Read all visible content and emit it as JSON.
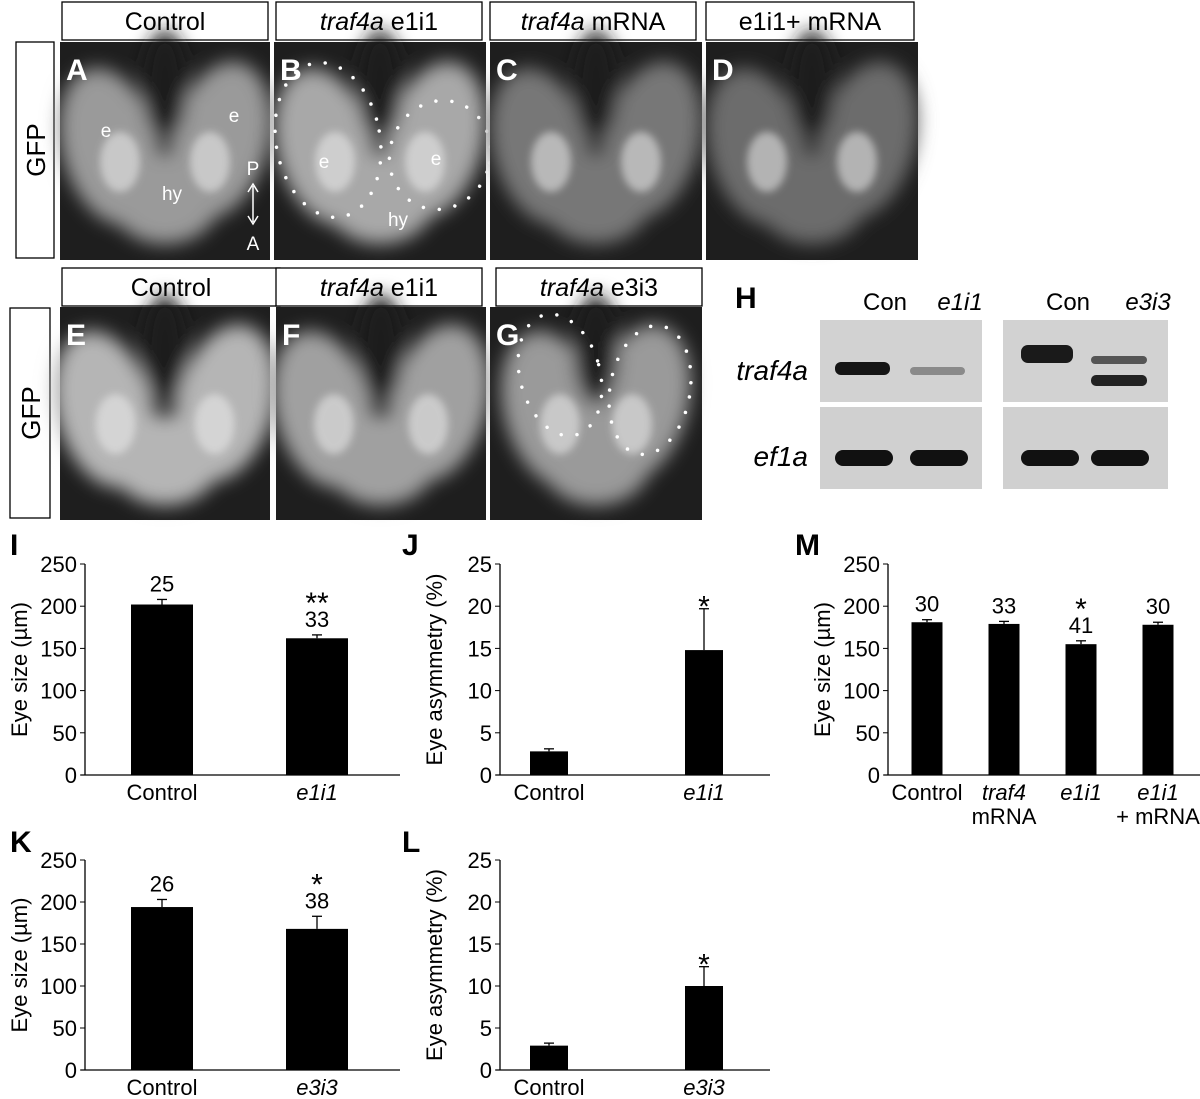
{
  "row1": {
    "headers": [
      {
        "parts": [
          {
            "text": "Control",
            "italic": false
          }
        ]
      },
      {
        "parts": [
          {
            "text": "traf4a",
            "italic": true
          },
          {
            "text": " e1i1",
            "italic": false
          }
        ]
      },
      {
        "parts": [
          {
            "text": "traf4a",
            "italic": true
          },
          {
            "text": " mRNA",
            "italic": false
          }
        ]
      },
      {
        "parts": [
          {
            "text": "e1i1+ mRNA",
            "italic": false
          }
        ]
      }
    ],
    "side_label": "GFP",
    "panels": [
      "A",
      "B",
      "C",
      "D"
    ],
    "annotations": {
      "eye": "e",
      "hypothalamus": "hy",
      "posterior": "P",
      "anterior": "A"
    }
  },
  "row2": {
    "headers": [
      {
        "parts": [
          {
            "text": "Control",
            "italic": false
          }
        ]
      },
      {
        "parts": [
          {
            "text": "traf4a",
            "italic": true
          },
          {
            "text": " e1i1",
            "italic": false
          }
        ]
      },
      {
        "parts": [
          {
            "text": "traf4a",
            "italic": true
          },
          {
            "text": " e3i3",
            "italic": false
          }
        ]
      }
    ],
    "side_label": "GFP",
    "panels": [
      "E",
      "F",
      "G"
    ]
  },
  "gel": {
    "panel": "H",
    "lanes_left": [
      "Con",
      "e1i1"
    ],
    "lanes_right": [
      "Con",
      "e3i3"
    ],
    "genes": [
      "traf4a",
      "ef1a"
    ]
  },
  "chart_data": [
    {
      "panel": "I",
      "type": "bar",
      "ylabel": "Eye size (µm)",
      "ylim": [
        0,
        250
      ],
      "yticks": [
        0,
        50,
        100,
        150,
        200,
        250
      ],
      "categories": [
        "Control",
        "e1i1"
      ],
      "category_italic": [
        false,
        true
      ],
      "values": [
        202,
        162
      ],
      "errors": [
        6,
        4
      ],
      "n_labels": [
        "25",
        "33"
      ],
      "significance": [
        "",
        "**"
      ]
    },
    {
      "panel": "J",
      "type": "bar",
      "ylabel": "Eye asymmetry (%)",
      "ylim": [
        0,
        25
      ],
      "yticks": [
        0,
        5,
        10,
        15,
        20,
        25
      ],
      "categories": [
        "Control",
        "e1i1"
      ],
      "category_italic": [
        false,
        true
      ],
      "values": [
        2.8,
        14.8
      ],
      "errors": [
        0.3,
        4.9
      ],
      "n_labels": [
        "",
        ""
      ],
      "significance": [
        "",
        "*"
      ]
    },
    {
      "panel": "M",
      "type": "bar",
      "ylabel": "Eye size (µm)",
      "ylim": [
        0,
        250
      ],
      "yticks": [
        0,
        50,
        100,
        150,
        200,
        250
      ],
      "categories": [
        "Control",
        "traf4\nmRNA",
        "e1i1",
        "e1i1\n+ mRNA"
      ],
      "category_italic": [
        false,
        true,
        true,
        true
      ],
      "values": [
        181,
        179,
        155,
        178
      ],
      "errors": [
        3,
        3,
        4,
        3
      ],
      "n_labels": [
        "30",
        "33",
        "41",
        "30"
      ],
      "significance": [
        "",
        "",
        "*",
        ""
      ]
    },
    {
      "panel": "K",
      "type": "bar",
      "ylabel": "Eye size (µm)",
      "ylim": [
        0,
        250
      ],
      "yticks": [
        0,
        50,
        100,
        150,
        200,
        250
      ],
      "categories": [
        "Control",
        "e3i3"
      ],
      "category_italic": [
        false,
        true
      ],
      "values": [
        194,
        168
      ],
      "errors": [
        9,
        15
      ],
      "n_labels": [
        "26",
        "38"
      ],
      "significance": [
        "",
        "*"
      ]
    },
    {
      "panel": "L",
      "type": "bar",
      "ylabel": "Eye asymmetry (%)",
      "ylim": [
        0,
        25
      ],
      "yticks": [
        0,
        5,
        10,
        15,
        20,
        25
      ],
      "categories": [
        "Control",
        "e3i3"
      ],
      "category_italic": [
        false,
        true
      ],
      "values": [
        2.9,
        10.0
      ],
      "errors": [
        0.3,
        2.3
      ],
      "n_labels": [
        "",
        ""
      ],
      "significance": [
        "",
        "*"
      ]
    }
  ]
}
